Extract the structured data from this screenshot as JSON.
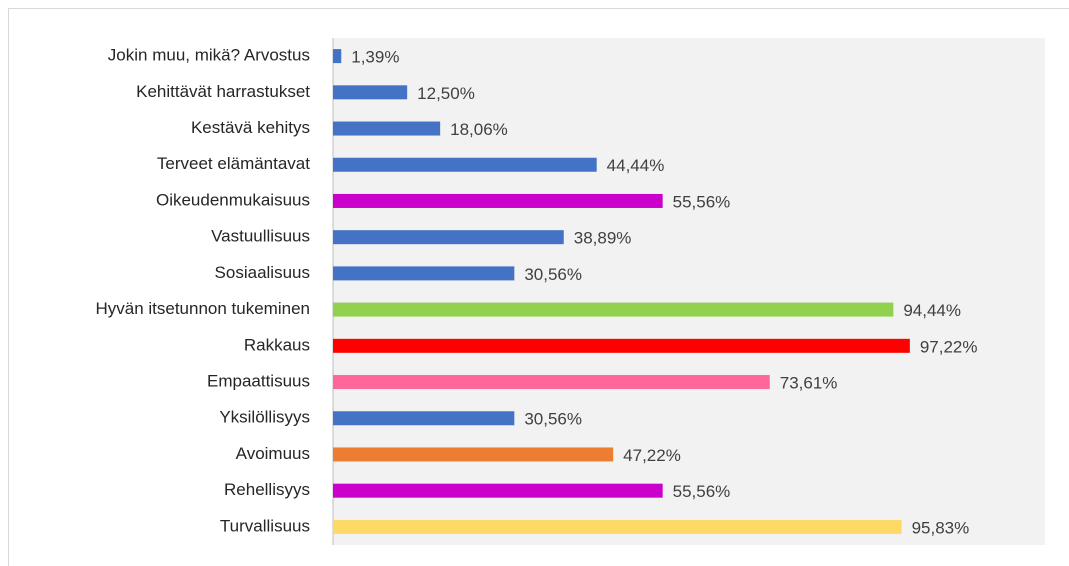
{
  "chart_data": {
    "type": "bar",
    "orientation": "horizontal",
    "categories": [
      "Jokin muu, mikä? Arvostus",
      "Kehittävät harrastukset",
      "Kestävä kehitys",
      "Terveet elämäntavat",
      "Oikeudenmukaisuus",
      "Vastuullisuus",
      "Sosiaalisuus",
      "Hyvän itsetunnon tukeminen",
      "Rakkaus",
      "Empaattisuus",
      "Yksilöllisyys",
      "Avoimuus",
      "Rehellisyys",
      "Turvallisuus"
    ],
    "values": [
      1.39,
      12.5,
      18.06,
      44.44,
      55.56,
      38.89,
      30.56,
      94.44,
      97.22,
      73.61,
      30.56,
      47.22,
      55.56,
      95.83
    ],
    "value_labels": [
      "1,39%",
      "12,50%",
      "18,06%",
      "44,44%",
      "55,56%",
      "38,89%",
      "30,56%",
      "94,44%",
      "97,22%",
      "73,61%",
      "30,56%",
      "47,22%",
      "55,56%",
      "95,83%"
    ],
    "colors": [
      "#4472c4",
      "#4472c4",
      "#4472c4",
      "#4472c4",
      "#cc00cc",
      "#4472c4",
      "#4472c4",
      "#92d050",
      "#ff0000",
      "#ff6699",
      "#4472c4",
      "#ed7d31",
      "#cc00cc",
      "#ffd966"
    ],
    "xlim": [
      0,
      120
    ]
  }
}
